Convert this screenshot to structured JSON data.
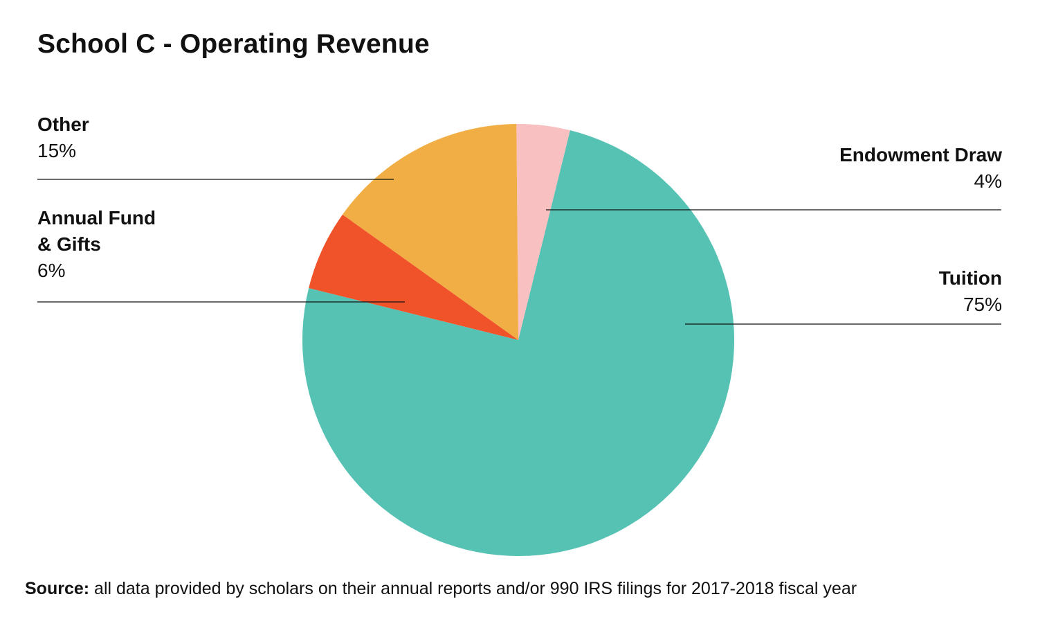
{
  "chart_data": {
    "type": "pie",
    "title": "School C - Operating Revenue",
    "slices": [
      {
        "label": "Endowment Draw",
        "value": 4,
        "value_label": "4%",
        "color": "#F8C0C1"
      },
      {
        "label": "Tuition",
        "value": 75,
        "value_label": "75%",
        "color": "#56C2B4"
      },
      {
        "label": "Annual Fund\n& Gifts",
        "label_line1": "Annual Fund",
        "label_line2": "& Gifts",
        "value": 6,
        "value_label": "6%",
        "color": "#F05229"
      },
      {
        "label": "Other",
        "value": 15,
        "value_label": "15%",
        "color": "#F1AE45"
      }
    ],
    "start": "top",
    "direction": "clockwise"
  },
  "source": {
    "prefix": "Source:",
    "text": " all data provided by scholars on their annual reports and/or 990 IRS filings for 2017-2018 fiscal year"
  }
}
